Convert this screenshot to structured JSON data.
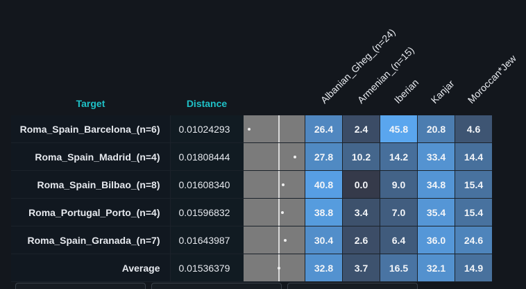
{
  "header": {
    "target": "Target",
    "distance": "Distance"
  },
  "columns": [
    "Albanian_Gheg_(n=24)",
    "Armenian_(n=15)",
    "Iberian",
    "Kanjar",
    "Moroccan*Jew"
  ],
  "rows": [
    {
      "target": "Roma_Spain_Barcelona_(n=6)",
      "distance": "0.01024293",
      "values": [
        "26.4",
        "2.4",
        "45.8",
        "20.8",
        "4.6"
      ]
    },
    {
      "target": "Roma_Spain_Madrid_(n=4)",
      "distance": "0.01808444",
      "values": [
        "27.8",
        "10.2",
        "14.2",
        "33.4",
        "14.4"
      ]
    },
    {
      "target": "Roma_Spain_Bilbao_(n=8)",
      "distance": "0.01608340",
      "values": [
        "40.8",
        "0.0",
        "9.0",
        "34.8",
        "15.4"
      ]
    },
    {
      "target": "Roma_Portugal_Porto_(n=4)",
      "distance": "0.01596832",
      "values": [
        "38.8",
        "3.4",
        "7.0",
        "35.4",
        "15.4"
      ]
    },
    {
      "target": "Roma_Spain_Granada_(n=7)",
      "distance": "0.01643987",
      "values": [
        "30.4",
        "2.6",
        "6.4",
        "36.0",
        "24.6"
      ]
    },
    {
      "target": "Average",
      "distance": "0.01536379",
      "values": [
        "32.8",
        "3.7",
        "16.5",
        "32.1",
        "14.9"
      ]
    }
  ],
  "colors": {
    "accent": "#1fc1c7",
    "background": "#13171d",
    "bar_background": "#7b7b7b"
  }
}
